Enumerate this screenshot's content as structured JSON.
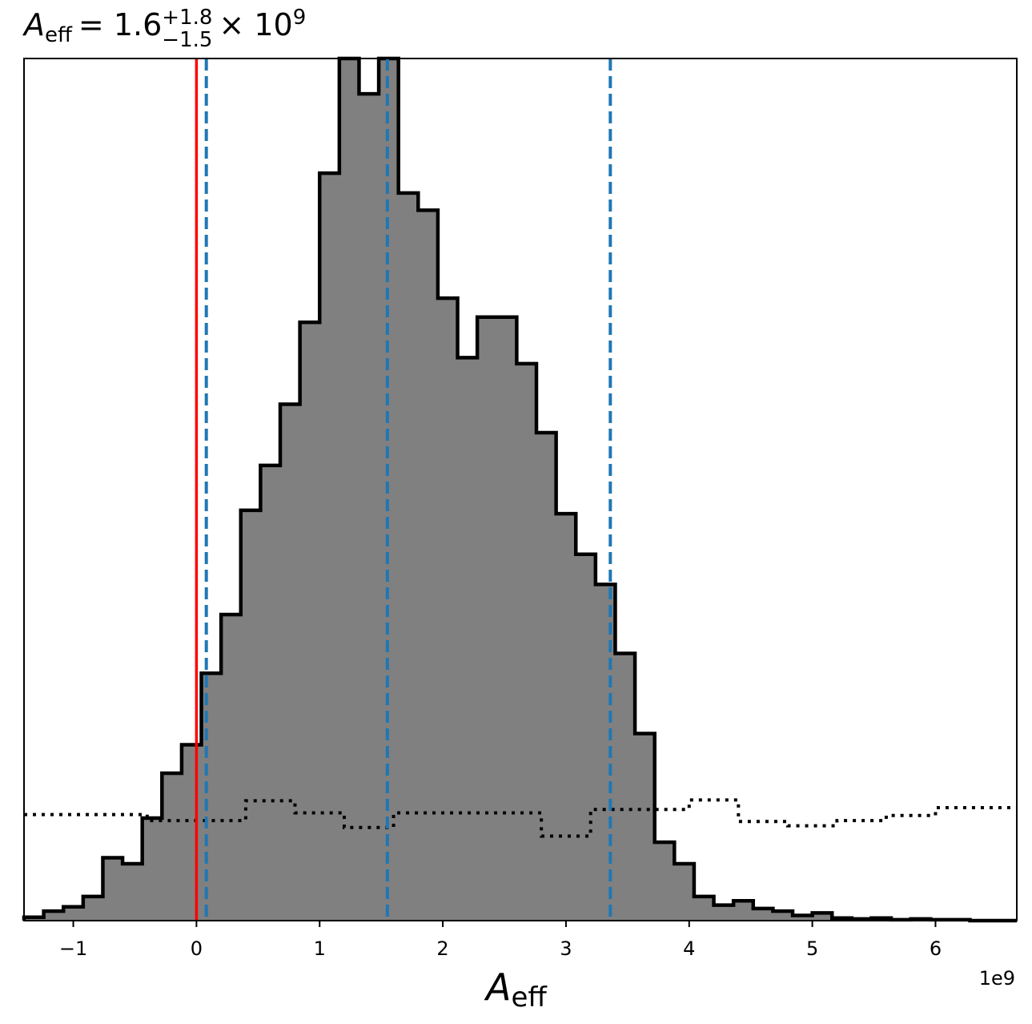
{
  "chart_data": {
    "type": "histogram",
    "title": {
      "symbol": "A",
      "symbol_subscript": "eff",
      "equals": "= 1.6",
      "upper_error": "+1.8",
      "lower_error": "−1.5",
      "times_power": "× 10",
      "exponent": "9"
    },
    "xlabel": {
      "symbol": "A",
      "subscript": "eff"
    },
    "x_offset_text": "1e9",
    "x_ticks": [
      {
        "value": -1,
        "label": "−1"
      },
      {
        "value": 0,
        "label": "0"
      },
      {
        "value": 1,
        "label": "1"
      },
      {
        "value": 2,
        "label": "2"
      },
      {
        "value": 3,
        "label": "3"
      },
      {
        "value": 4,
        "label": "4"
      },
      {
        "value": 5,
        "label": "5"
      },
      {
        "value": 6,
        "label": "6"
      }
    ],
    "xlim": [
      -1.4,
      6.66
    ],
    "ylim": [
      0,
      1.0
    ],
    "x_unit_scale": "1e9",
    "posterior": {
      "bin_edges": [
        -1.4,
        -1.24,
        -1.08,
        -0.92,
        -0.76,
        -0.6,
        -0.44,
        -0.28,
        -0.12,
        0.04,
        0.2,
        0.36,
        0.52,
        0.68,
        0.84,
        1.0,
        1.16,
        1.32,
        1.48,
        1.64,
        1.8,
        1.96,
        2.12,
        2.28,
        2.44,
        2.6,
        2.76,
        2.92,
        3.08,
        3.24,
        3.4,
        3.56,
        3.72,
        3.88,
        4.04,
        4.2,
        4.36,
        4.52,
        4.68,
        4.84,
        5.0,
        5.16,
        5.32,
        5.48,
        5.64,
        5.8,
        5.96,
        6.12,
        6.28,
        6.44,
        6.66
      ],
      "heights": [
        0.004,
        0.011,
        0.016,
        0.028,
        0.073,
        0.066,
        0.119,
        0.171,
        0.204,
        0.287,
        0.355,
        0.476,
        0.528,
        0.599,
        0.694,
        0.867,
        1.0,
        0.959,
        1.0,
        0.844,
        0.824,
        0.722,
        0.653,
        0.7,
        0.7,
        0.646,
        0.566,
        0.472,
        0.425,
        0.39,
        0.31,
        0.217,
        0.091,
        0.066,
        0.028,
        0.018,
        0.023,
        0.014,
        0.011,
        0.006,
        0.009,
        0.003,
        0.002,
        0.003,
        0.001,
        0.002,
        0.001,
        0.001,
        0.0,
        0.0
      ],
      "fill_color": "#808080",
      "edge_color": "#000000"
    },
    "prior": {
      "bin_edges": [
        -1.4,
        -0.4,
        0.4,
        0.8,
        1.2,
        1.6,
        2.8,
        3.2,
        4.0,
        4.4,
        4.8,
        5.2,
        5.6,
        6.0,
        6.66
      ],
      "heights": [
        0.123,
        0.116,
        0.139,
        0.125,
        0.108,
        0.125,
        0.098,
        0.129,
        0.14,
        0.115,
        0.11,
        0.116,
        0.122,
        0.131
      ],
      "line_style": "dotted",
      "color": "#000000"
    },
    "vertical_lines": [
      {
        "x": 0.0,
        "color": "#ff0000",
        "style": "solid",
        "role": "injected value"
      },
      {
        "x": 0.08,
        "color": "#1f77b4",
        "style": "dashed",
        "role": "lower bound"
      },
      {
        "x": 1.55,
        "color": "#1f77b4",
        "style": "dashed",
        "role": "median"
      },
      {
        "x": 3.36,
        "color": "#1f77b4",
        "style": "dashed",
        "role": "upper bound"
      }
    ],
    "grid": false,
    "legend": null
  }
}
